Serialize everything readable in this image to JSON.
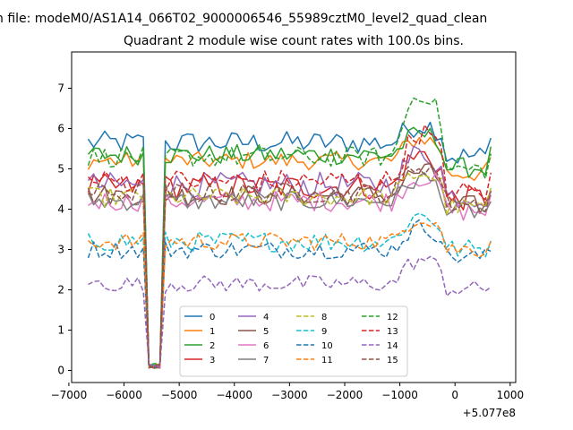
{
  "figure": {
    "suptitle": "n file: modeM0/AS1A14_066T02_9000006546_55989cztM0_level2_quad_clean",
    "offset_label": "+5.077e8"
  },
  "chart_data": {
    "type": "line",
    "title": "Quadrant 2 module wise count rates with 100.0s bins.",
    "xlabel": "",
    "ylabel": "",
    "x_offset": 507700000,
    "xlim": [
      -6950,
      1100
    ],
    "ylim": [
      -0.3,
      7.9
    ],
    "xticks": [
      -7000,
      -6000,
      -5000,
      -4000,
      -3000,
      -2000,
      -1000,
      0,
      1000
    ],
    "xtick_labels": [
      "−7000",
      "−6000",
      "−5000",
      "−4000",
      "−3000",
      "−2000",
      "−1000",
      "0",
      "1000"
    ],
    "yticks": [
      0,
      1,
      2,
      3,
      4,
      5,
      6,
      7
    ],
    "ytick_labels": [
      "0",
      "1",
      "2",
      "3",
      "4",
      "5",
      "6",
      "7"
    ],
    "x_range": [
      -6650,
      700
    ],
    "bin_size": 100,
    "grid": false,
    "legend": {
      "placement": "bottom-center",
      "ncol": 4
    },
    "series": [
      {
        "name": "0",
        "color": "#1f77b4",
        "dash": "solid",
        "base": 5.65,
        "noise": 0.18,
        "flare": 0.45
      },
      {
        "name": "1",
        "color": "#ff7f0e",
        "dash": "solid",
        "base": 5.2,
        "noise": 0.14,
        "flare": 0.55
      },
      {
        "name": "2",
        "color": "#2ca02c",
        "dash": "solid",
        "base": 5.35,
        "noise": 0.16,
        "flare": 0.5
      },
      {
        "name": "3",
        "color": "#d62728",
        "dash": "solid",
        "base": 4.55,
        "noise": 0.2,
        "flare": 0.8
      },
      {
        "name": "4",
        "color": "#9467bd",
        "dash": "solid",
        "base": 4.6,
        "noise": 0.2,
        "flare": 0.8
      },
      {
        "name": "5",
        "color": "#8c564b",
        "dash": "solid",
        "base": 4.35,
        "noise": 0.16,
        "flare": 0.6
      },
      {
        "name": "6",
        "color": "#e377c2",
        "dash": "solid",
        "base": 4.2,
        "noise": 0.16,
        "flare": 0.6
      },
      {
        "name": "7",
        "color": "#7f7f7f",
        "dash": "solid",
        "base": 4.2,
        "noise": 0.15,
        "flare": 0.55
      },
      {
        "name": "8",
        "color": "#bcbd22",
        "dash": "dashed",
        "base": 4.3,
        "noise": 0.15,
        "flare": 0.6
      },
      {
        "name": "9",
        "color": "#17becf",
        "dash": "dashed",
        "base": 3.2,
        "noise": 0.16,
        "flare": 0.65
      },
      {
        "name": "10",
        "color": "#1f77b4",
        "dash": "dashed",
        "base": 3.0,
        "noise": 0.14,
        "flare": 0.55
      },
      {
        "name": "11",
        "color": "#ff7f0e",
        "dash": "dashed",
        "base": 3.2,
        "noise": 0.14,
        "flare": 0.6
      },
      {
        "name": "12",
        "color": "#2ca02c",
        "dash": "dashed",
        "base": 5.3,
        "noise": 0.16,
        "flare": 1.6
      },
      {
        "name": "13",
        "color": "#d62728",
        "dash": "dashed",
        "base": 4.7,
        "noise": 0.18,
        "flare": 1.2
      },
      {
        "name": "14",
        "color": "#9467bd",
        "dash": "dashed",
        "base": 2.15,
        "noise": 0.13,
        "flare": 0.6
      },
      {
        "name": "15",
        "color": "#8c564b",
        "dash": "dashed",
        "base": 4.4,
        "noise": 0.16,
        "flare": 0.7
      }
    ]
  }
}
